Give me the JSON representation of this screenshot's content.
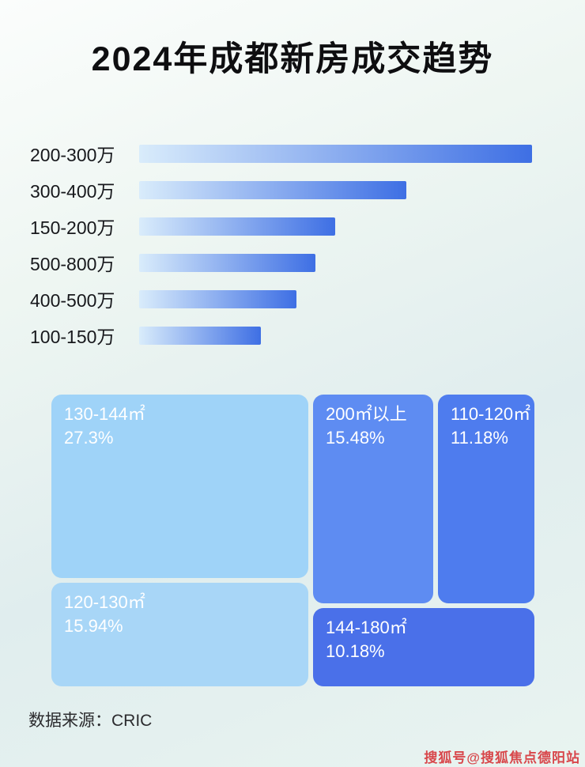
{
  "page": {
    "title": "2024年成都新房成交趋势",
    "source": "数据来源：CRIC",
    "watermark": "搜狐号@搜狐焦点德阳站"
  },
  "colors": {
    "bar_gradient_start": "#d9ecfb",
    "bar_gradient_end": "#3e6fe4",
    "title_text": "#0e0e10",
    "treemap_text": "#ffffff"
  },
  "chart_data": [
    {
      "type": "bar",
      "orientation": "horizontal",
      "title": "2024年成都新房成交趋势",
      "categories": [
        "200-300万",
        "300-400万",
        "150-200万",
        "500-800万",
        "400-500万",
        "100-150万"
      ],
      "values": [
        100,
        68,
        50,
        45,
        40,
        31
      ],
      "value_note": "relative bar lengths, % of longest bar (no numeric axis shown)",
      "xlabel": "",
      "ylabel": "",
      "grid": false,
      "legend": false
    },
    {
      "type": "treemap",
      "items": [
        {
          "label": "130-144㎡",
          "percent": "27.3%",
          "value": 27.3,
          "color": "#9fd3f8"
        },
        {
          "label": "120-130㎡",
          "percent": "15.94%",
          "value": 15.94,
          "color": "#a8d6f7"
        },
        {
          "label": "200㎡以上",
          "percent": "15.48%",
          "value": 15.48,
          "color": "#5e8cf2"
        },
        {
          "label": "110-120㎡",
          "percent": "11.18%",
          "value": 11.18,
          "color": "#4e7cee"
        },
        {
          "label": "144-180㎡",
          "percent": "10.18%",
          "value": 10.18,
          "color": "#4a70e9"
        }
      ]
    }
  ]
}
